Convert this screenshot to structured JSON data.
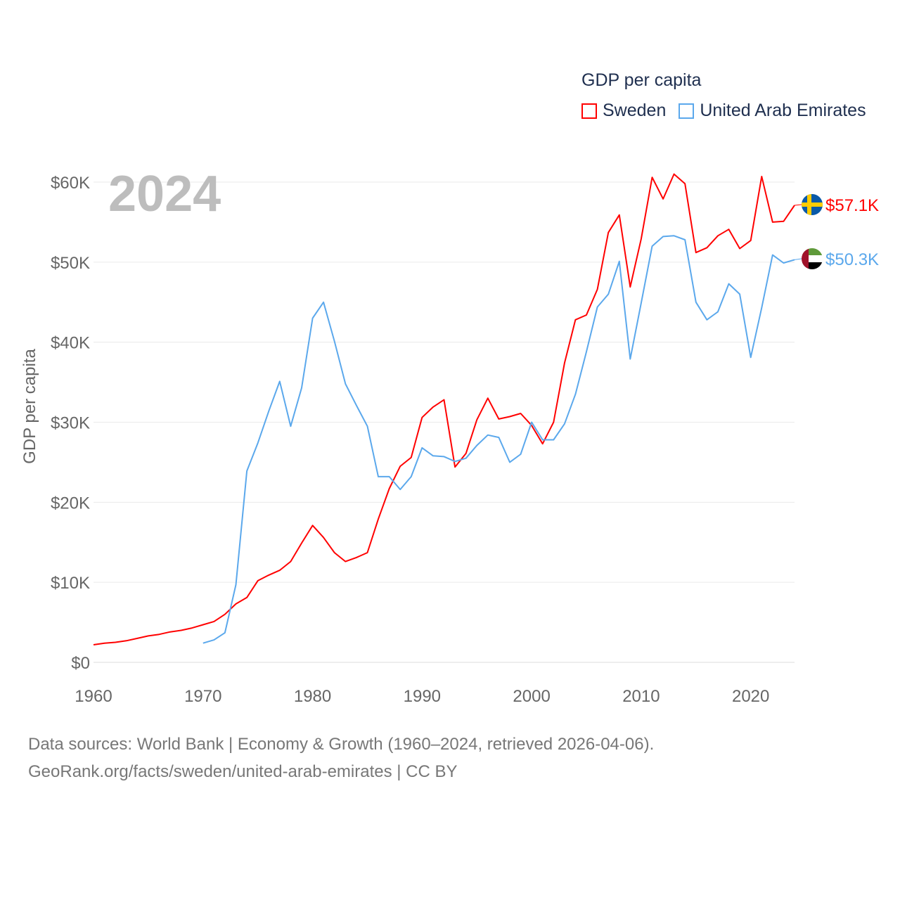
{
  "chart_data": {
    "type": "line",
    "title": "GDP per capita",
    "year_label": "2024",
    "xlabel": "",
    "ylabel": "GDP per capita",
    "xlim": [
      1960,
      2024
    ],
    "ylim": [
      0,
      60000
    ],
    "x_ticks": [
      "1960",
      "1970",
      "1980",
      "1990",
      "2000",
      "2010",
      "2020"
    ],
    "y_ticks": [
      "$0",
      "$10K",
      "$20K",
      "$30K",
      "$40K",
      "$50K",
      "$60K"
    ],
    "grid": true,
    "legend_position": "top-right",
    "series": [
      {
        "name": "Sweden",
        "color": "#ff0000",
        "end_label": "$57.1K",
        "start_year": 1960,
        "values": [
          2.2,
          2.4,
          2.5,
          2.7,
          3.0,
          3.3,
          3.5,
          3.8,
          4.0,
          4.3,
          4.7,
          5.1,
          6.0,
          7.3,
          8.1,
          10.2,
          10.9,
          11.5,
          12.6,
          14.9,
          17.1,
          15.6,
          13.7,
          12.6,
          13.1,
          13.7,
          17.9,
          21.7,
          24.5,
          25.6,
          30.6,
          31.9,
          32.8,
          24.4,
          26.1,
          30.3,
          33.0,
          30.4,
          30.7,
          31.1,
          29.6,
          27.3,
          30.0,
          37.4,
          42.8,
          43.4,
          46.6,
          53.7,
          55.9,
          46.9,
          52.9,
          60.6,
          57.9,
          61.0,
          59.8,
          51.2,
          51.8,
          53.3,
          54.1,
          51.7,
          52.7,
          60.7,
          55.0,
          55.1,
          57.1
        ]
      },
      {
        "name": "United Arab Emirates",
        "color": "#5ba8ec",
        "end_label": "$50.3K",
        "start_year": 1970,
        "values": [
          2.4,
          2.8,
          3.7,
          9.7,
          23.9,
          27.4,
          31.4,
          35.1,
          29.5,
          34.3,
          43.0,
          45.0,
          40.1,
          34.8,
          32.1,
          29.5,
          23.2,
          23.2,
          21.6,
          23.2,
          26.8,
          25.8,
          25.7,
          25.1,
          25.5,
          27.1,
          28.4,
          28.1,
          25.0,
          26.0,
          30.0,
          27.8,
          27.8,
          29.8,
          33.5,
          38.8,
          44.4,
          46.0,
          50.1,
          37.9,
          44.9,
          52.0,
          53.2,
          53.3,
          52.8,
          45.0,
          42.8,
          43.8,
          47.3,
          46.0,
          38.1,
          44.3,
          50.9,
          49.9,
          50.3
        ]
      }
    ],
    "value_unit": "thousands USD"
  },
  "footer": {
    "line1": "Data sources: World Bank | Economy & Growth (1960–2024, retrieved 2026-04-06).",
    "line2": "GeoRank.org/facts/sweden/united-arab-emirates | CC BY"
  }
}
